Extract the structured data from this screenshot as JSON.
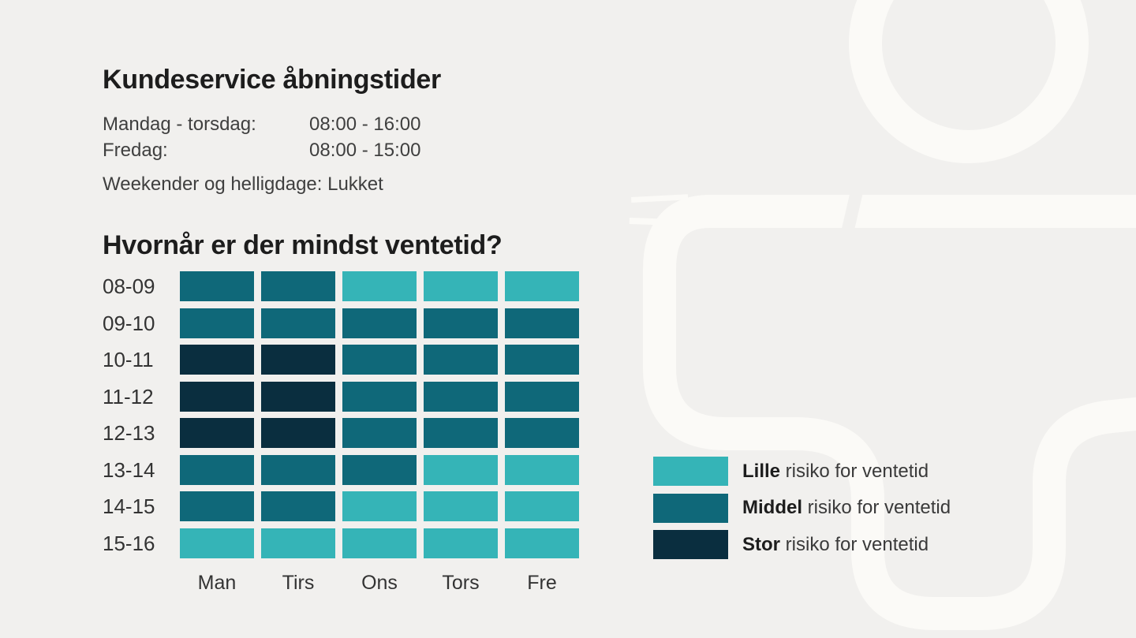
{
  "colors": {
    "background": "#f1f0ee",
    "decoration_white": "#fbfaf7",
    "heading_text": "#1d1d1d",
    "body_text": "#3f3f3f",
    "lille": "#35b4b7",
    "middel": "#0f6879",
    "stor": "#0a2e3f"
  },
  "opening_hours": {
    "title": "Kundeservice åbningstider",
    "rows": [
      {
        "label": "Mandag - torsdag:",
        "time": "08:00 - 16:00"
      },
      {
        "label": "Fredag:",
        "time": "08:00 - 15:00"
      }
    ],
    "note": "Weekender og helligdage: Lukket"
  },
  "chart_data": {
    "type": "heatmap",
    "title": "Hvornår er der mindst ventetid?",
    "x_categories": [
      "Man",
      "Tirs",
      "Ons",
      "Tors",
      "Fre"
    ],
    "y_categories": [
      "08-09",
      "09-10",
      "10-11",
      "11-12",
      "12-13",
      "13-14",
      "14-15",
      "15-16"
    ],
    "legend_position": "right",
    "level_colors": {
      "lille": "#35b4b7",
      "middel": "#0f6879",
      "stor": "#0a2e3f"
    },
    "values": [
      [
        "middel",
        "middel",
        "lille",
        "lille",
        "lille"
      ],
      [
        "middel",
        "middel",
        "middel",
        "middel",
        "middel"
      ],
      [
        "stor",
        "stor",
        "middel",
        "middel",
        "middel"
      ],
      [
        "stor",
        "stor",
        "middel",
        "middel",
        "middel"
      ],
      [
        "stor",
        "stor",
        "middel",
        "middel",
        "middel"
      ],
      [
        "middel",
        "middel",
        "middel",
        "lille",
        "lille"
      ],
      [
        "middel",
        "middel",
        "lille",
        "lille",
        "lille"
      ],
      [
        "lille",
        "lille",
        "lille",
        "lille",
        "lille"
      ]
    ]
  },
  "legend": {
    "items": [
      {
        "level": "lille",
        "emphasis": "Lille",
        "rest": " risiko for ventetid"
      },
      {
        "level": "middel",
        "emphasis": "Middel",
        "rest": " risiko for ventetid"
      },
      {
        "level": "stor",
        "emphasis": "Stor",
        "rest": " risiko for ventetid"
      }
    ]
  }
}
